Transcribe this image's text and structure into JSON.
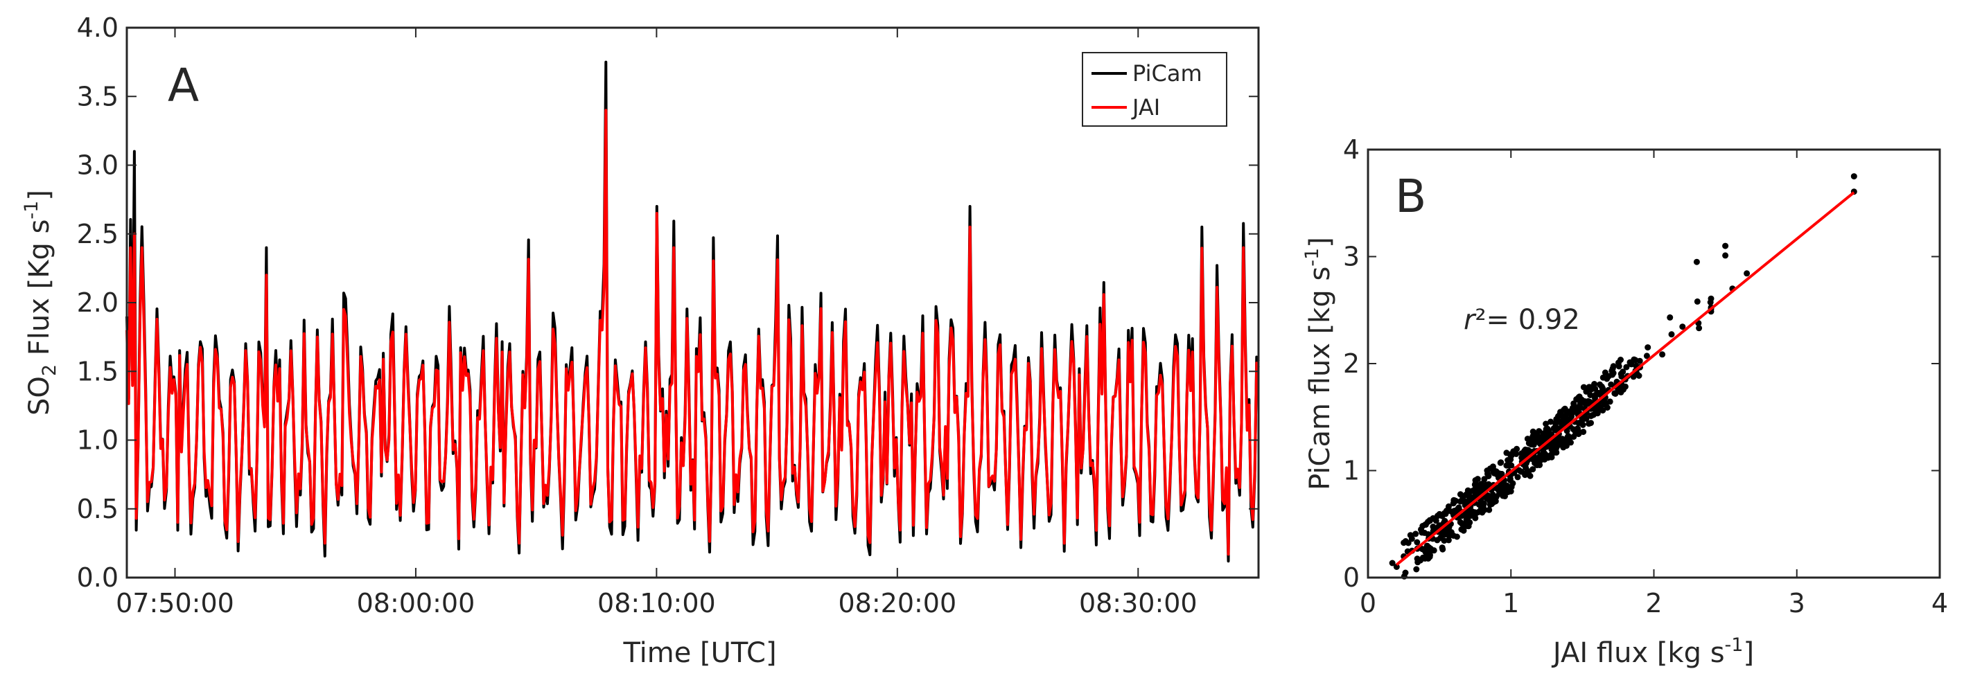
{
  "chart_data": [
    {
      "type": "line",
      "panel_label": "A",
      "xlabel": "Time [UTC]",
      "ylabel": {
        "pre": "SO",
        "sub": "2",
        "mid": " Flux [Kg s",
        "sup": "-1",
        "post": "]"
      },
      "xlim_seconds_after_0748": [
        0,
        2820
      ],
      "x_ticks": [
        "07:50:00",
        "08:00:00",
        "08:10:00",
        "08:20:00",
        "08:30:00"
      ],
      "x_ticks_seconds_after_0748": [
        120,
        720,
        1320,
        1920,
        2520
      ],
      "ylim": [
        0,
        4
      ],
      "y_ticks": [
        "0.0",
        "0.5",
        "1.0",
        "1.5",
        "2.0",
        "2.5",
        "3.0",
        "3.5",
        "4.0"
      ],
      "legend": {
        "position": "top-right",
        "entries": [
          "PiCam",
          "JAI"
        ]
      },
      "colors": {
        "PiCam": "#000000",
        "JAI": "#ff0000"
      },
      "key_points": {
        "PiCam": [
          [
            0,
            1.9
          ],
          [
            20,
            3.1
          ],
          [
            350,
            2.4
          ],
          [
            1195,
            3.75
          ],
          [
            1320,
            2.7
          ],
          [
            2100,
            2.7
          ],
          [
            2745,
            0.12
          ]
        ],
        "JAI": [
          [
            0,
            1.8
          ],
          [
            20,
            2.5
          ],
          [
            350,
            2.2
          ],
          [
            1195,
            3.4
          ],
          [
            1320,
            2.65
          ],
          [
            2100,
            2.55
          ],
          [
            2745,
            0.17
          ]
        ]
      }
    },
    {
      "type": "scatter",
      "panel_label": "B",
      "xlabel": {
        "pre": "JAI flux [kg s",
        "sup": "-1",
        "post": "]"
      },
      "ylabel": {
        "pre": "PiCam flux [kg s",
        "sup": "-1",
        "post": "]"
      },
      "xlim": [
        0,
        4
      ],
      "ylim": [
        0,
        4
      ],
      "x_ticks": [
        "0",
        "1",
        "2",
        "3",
        "4"
      ],
      "y_ticks": [
        "0",
        "1",
        "2",
        "3",
        "4"
      ],
      "annotation": {
        "r": "r",
        "rest": "²= 0.92"
      },
      "fit_line": {
        "color": "#ff0000",
        "x": [
          0.2,
          3.4
        ],
        "y": [
          0.12,
          3.6
        ]
      },
      "point_color": "#000000",
      "notable_points": [
        [
          3.4,
          3.75
        ],
        [
          2.5,
          3.1
        ],
        [
          2.3,
          2.95
        ],
        [
          0.2,
          0.1
        ]
      ]
    }
  ]
}
